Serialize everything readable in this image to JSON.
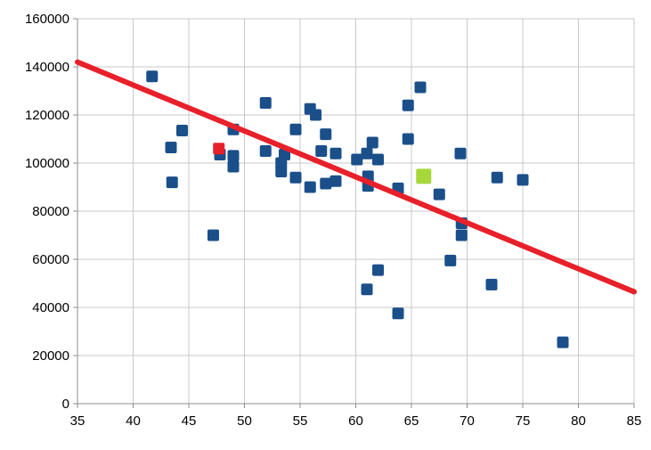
{
  "chart_data": {
    "type": "scatter",
    "title": "",
    "xlabel": "",
    "ylabel": "",
    "xlim": [
      35,
      85
    ],
    "ylim": [
      0,
      160000
    ],
    "x_ticks": [
      35,
      40,
      45,
      50,
      55,
      60,
      65,
      70,
      75,
      80,
      85
    ],
    "y_ticks": [
      0,
      20000,
      40000,
      60000,
      80000,
      100000,
      120000,
      140000,
      160000
    ],
    "grid": true,
    "legend": "none",
    "colors": {
      "points": "#1a4f8a",
      "trendline": "#e8202a",
      "highlight_red": "#e8202a",
      "highlight_green": "#a6d83b",
      "grid": "#c8c8c8",
      "axis": "#8c8c8c"
    },
    "series": [
      {
        "points": [
          [
            41.7,
            136000
          ],
          [
            43.4,
            106500
          ],
          [
            43.5,
            92000
          ],
          [
            44.4,
            113500
          ],
          [
            47.2,
            70000
          ],
          [
            47.8,
            103500
          ],
          [
            49.0,
            114000
          ],
          [
            49.0,
            103000
          ],
          [
            49.0,
            98500
          ],
          [
            51.9,
            125000
          ],
          [
            51.9,
            105000
          ],
          [
            53.3,
            96500
          ],
          [
            53.3,
            100000
          ],
          [
            53.6,
            103500
          ],
          [
            54.6,
            114000
          ],
          [
            54.6,
            94000
          ],
          [
            55.9,
            122500
          ],
          [
            55.9,
            90000
          ],
          [
            56.4,
            120000
          ],
          [
            56.9,
            105000
          ],
          [
            57.3,
            112000
          ],
          [
            57.3,
            91500
          ],
          [
            58.2,
            104000
          ],
          [
            58.2,
            92500
          ],
          [
            60.1,
            101500
          ],
          [
            61.0,
            104000
          ],
          [
            61.1,
            94500
          ],
          [
            61.1,
            90500
          ],
          [
            61.0,
            47500
          ],
          [
            61.5,
            108500
          ],
          [
            62.0,
            101500
          ],
          [
            62.0,
            55500
          ],
          [
            63.8,
            89500
          ],
          [
            63.8,
            37500
          ],
          [
            64.7,
            124000
          ],
          [
            64.7,
            110000
          ],
          [
            65.8,
            131500
          ],
          [
            67.5,
            87000
          ],
          [
            68.5,
            59500
          ],
          [
            69.4,
            104000
          ],
          [
            69.5,
            75000
          ],
          [
            69.5,
            70000
          ],
          [
            72.2,
            49500
          ],
          [
            72.7,
            94000
          ],
          [
            75.0,
            93000
          ],
          [
            78.6,
            25500
          ]
        ]
      },
      {
        "points": [
          [
            47.7,
            106000
          ]
        ]
      },
      {
        "points": [
          [
            66.1,
            94500
          ]
        ]
      }
    ],
    "trendline": {
      "x": [
        35,
        85
      ],
      "y": [
        142000,
        46500
      ]
    }
  }
}
